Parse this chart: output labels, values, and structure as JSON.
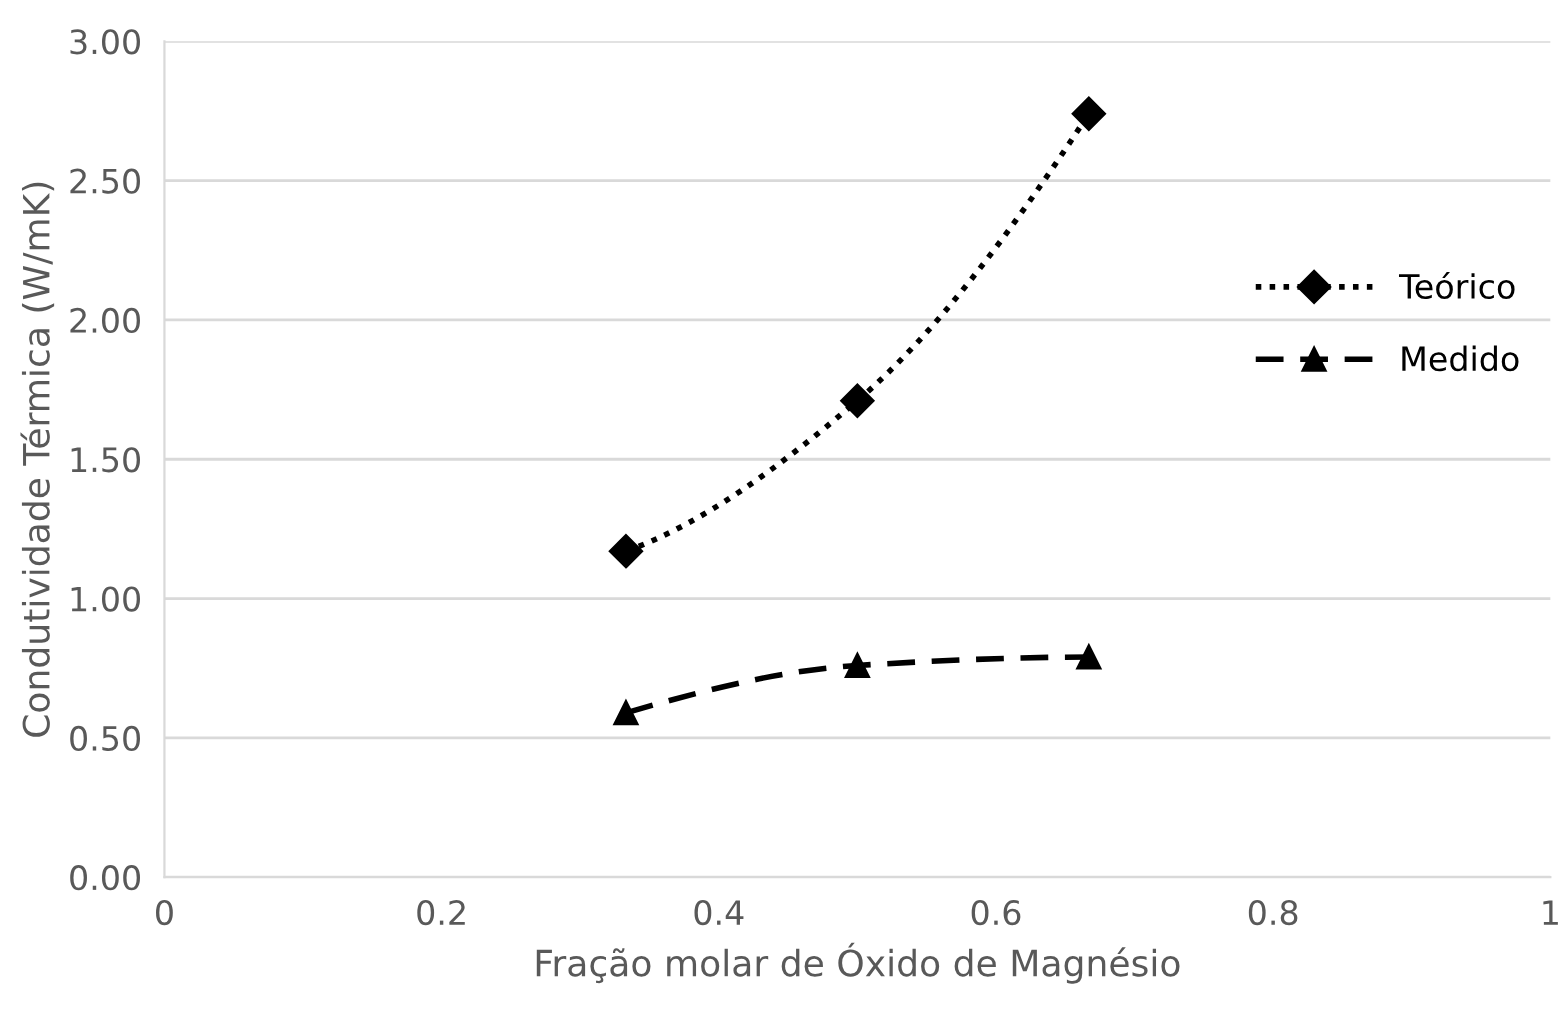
{
  "chart_data": {
    "type": "line",
    "xlabel": "Fração molar de Óxido de Magnésio",
    "ylabel": "Condutividade Térmica (W/mK)",
    "x": [
      0.333,
      0.5,
      0.667
    ],
    "series": [
      {
        "name": "Teórico",
        "color": "#000000",
        "values": [
          1.17,
          1.71,
          2.74
        ],
        "marker": "diamond",
        "line_style": "dotted"
      },
      {
        "name": "Medido",
        "color": "#000000",
        "values": [
          0.59,
          0.76,
          0.79
        ],
        "marker": "triangle",
        "line_style": "dashed"
      }
    ],
    "xlim": [
      0,
      1
    ],
    "xticks": [
      0,
      {
        "value": 0.2,
        "label": "0.2"
      },
      {
        "value": 0.4,
        "label": "0.4"
      },
      {
        "value": 0.6,
        "label": "0.6"
      },
      {
        "value": 0.8,
        "label": "0.8"
      },
      1
    ],
    "ylim": [
      0,
      3
    ],
    "yticks": [
      {
        "value": 0,
        "label": "0.00"
      },
      {
        "value": 0.5,
        "label": "0.50"
      },
      {
        "value": 1,
        "label": "1.00"
      },
      {
        "value": 1.5,
        "label": "1.50"
      },
      {
        "value": 2,
        "label": "2.00"
      },
      {
        "value": 2.5,
        "label": "2.50"
      },
      {
        "value": 3,
        "label": "3.00"
      }
    ],
    "grid": "y",
    "legend": "right"
  }
}
